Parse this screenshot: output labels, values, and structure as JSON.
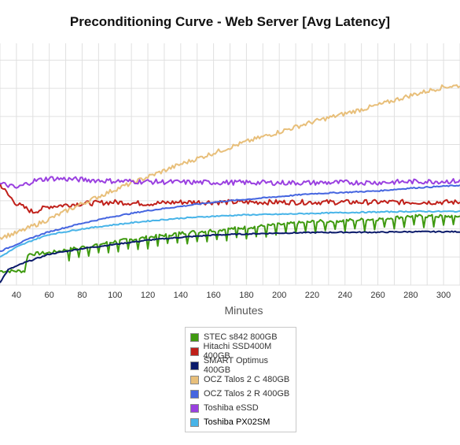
{
  "chart_data": {
    "type": "line",
    "title": "Preconditioning Curve - Web Server [Avg Latency]",
    "xlabel": "Minutes",
    "ylabel": "",
    "xlim": [
      30,
      310
    ],
    "ylim": [
      0,
      8.6
    ],
    "x_ticks": [
      40,
      60,
      80,
      100,
      120,
      140,
      160,
      180,
      200,
      220,
      240,
      260,
      280,
      300
    ],
    "grid": true,
    "legend_position": "bottom-center",
    "series": [
      {
        "name": "STEC s842 800GB",
        "color": "#3f9a10",
        "noise": 0.06,
        "dips": true,
        "points": [
          [
            30,
            0.5
          ],
          [
            45,
            0.5
          ],
          [
            47,
            1.1
          ],
          [
            60,
            1.15
          ],
          [
            80,
            1.35
          ],
          [
            100,
            1.55
          ],
          [
            120,
            1.7
          ],
          [
            140,
            1.85
          ],
          [
            160,
            1.95
          ],
          [
            180,
            2.05
          ],
          [
            200,
            2.15
          ],
          [
            220,
            2.25
          ],
          [
            240,
            2.3
          ],
          [
            260,
            2.35
          ],
          [
            280,
            2.45
          ],
          [
            310,
            2.45
          ]
        ]
      },
      {
        "name": "Hitachi SSD400M 400GB",
        "color": "#c0201a",
        "noise": 0.09,
        "points": [
          [
            30,
            3.6
          ],
          [
            35,
            3.2
          ],
          [
            40,
            2.9
          ],
          [
            50,
            2.6
          ],
          [
            60,
            2.8
          ],
          [
            80,
            2.9
          ],
          [
            100,
            2.95
          ],
          [
            120,
            2.9
          ],
          [
            140,
            2.95
          ],
          [
            160,
            2.95
          ],
          [
            180,
            2.95
          ],
          [
            200,
            2.95
          ],
          [
            220,
            2.95
          ],
          [
            240,
            2.95
          ],
          [
            260,
            2.95
          ],
          [
            280,
            2.95
          ],
          [
            310,
            2.95
          ]
        ]
      },
      {
        "name": "SMART Optimus 400GB",
        "color": "#0a1a6a",
        "noise": 0.02,
        "points": [
          [
            30,
            0.1
          ],
          [
            35,
            0.55
          ],
          [
            45,
            0.8
          ],
          [
            60,
            1.1
          ],
          [
            80,
            1.3
          ],
          [
            100,
            1.45
          ],
          [
            120,
            1.6
          ],
          [
            140,
            1.7
          ],
          [
            160,
            1.78
          ],
          [
            180,
            1.82
          ],
          [
            200,
            1.85
          ],
          [
            220,
            1.87
          ],
          [
            240,
            1.88
          ],
          [
            260,
            1.88
          ],
          [
            280,
            1.9
          ],
          [
            310,
            1.9
          ]
        ]
      },
      {
        "name": "OCZ Talos 2 C 480GB",
        "color": "#e8bf7a",
        "noise": 0.08,
        "points": [
          [
            30,
            1.7
          ],
          [
            40,
            1.85
          ],
          [
            50,
            2.1
          ],
          [
            60,
            2.35
          ],
          [
            80,
            2.9
          ],
          [
            100,
            3.4
          ],
          [
            120,
            3.85
          ],
          [
            140,
            4.3
          ],
          [
            160,
            4.7
          ],
          [
            180,
            5.1
          ],
          [
            200,
            5.45
          ],
          [
            220,
            5.8
          ],
          [
            240,
            6.1
          ],
          [
            260,
            6.4
          ],
          [
            280,
            6.75
          ],
          [
            300,
            7.05
          ],
          [
            310,
            7.1
          ]
        ]
      },
      {
        "name": "OCZ Talos 2 R 400GB",
        "color": "#4565e0",
        "noise": 0.02,
        "points": [
          [
            30,
            1.2
          ],
          [
            40,
            1.45
          ],
          [
            50,
            1.7
          ],
          [
            60,
            1.9
          ],
          [
            80,
            2.2
          ],
          [
            100,
            2.45
          ],
          [
            120,
            2.65
          ],
          [
            140,
            2.8
          ],
          [
            160,
            2.95
          ],
          [
            180,
            3.05
          ],
          [
            200,
            3.15
          ],
          [
            220,
            3.25
          ],
          [
            240,
            3.3
          ],
          [
            260,
            3.35
          ],
          [
            280,
            3.45
          ],
          [
            310,
            3.55
          ]
        ]
      },
      {
        "name": "Toshiba eSSD",
        "color": "#9a40e0",
        "noise": 0.09,
        "points": [
          [
            30,
            3.6
          ],
          [
            35,
            3.55
          ],
          [
            40,
            3.45
          ],
          [
            50,
            3.7
          ],
          [
            60,
            3.8
          ],
          [
            80,
            3.75
          ],
          [
            100,
            3.7
          ],
          [
            120,
            3.68
          ],
          [
            140,
            3.66
          ],
          [
            160,
            3.65
          ],
          [
            180,
            3.65
          ],
          [
            200,
            3.64
          ],
          [
            220,
            3.64
          ],
          [
            240,
            3.65
          ],
          [
            260,
            3.65
          ],
          [
            280,
            3.68
          ],
          [
            310,
            3.7
          ]
        ]
      },
      {
        "name": "Toshiba PX02SM",
        "color": "#48b4e8",
        "noise": 0.02,
        "points": [
          [
            30,
            1.0
          ],
          [
            40,
            1.35
          ],
          [
            50,
            1.6
          ],
          [
            60,
            1.8
          ],
          [
            80,
            2.0
          ],
          [
            100,
            2.15
          ],
          [
            120,
            2.28
          ],
          [
            140,
            2.38
          ],
          [
            160,
            2.45
          ],
          [
            180,
            2.5
          ],
          [
            200,
            2.52
          ],
          [
            220,
            2.55
          ],
          [
            240,
            2.58
          ],
          [
            260,
            2.6
          ],
          [
            280,
            2.62
          ],
          [
            310,
            2.62
          ]
        ]
      }
    ]
  }
}
